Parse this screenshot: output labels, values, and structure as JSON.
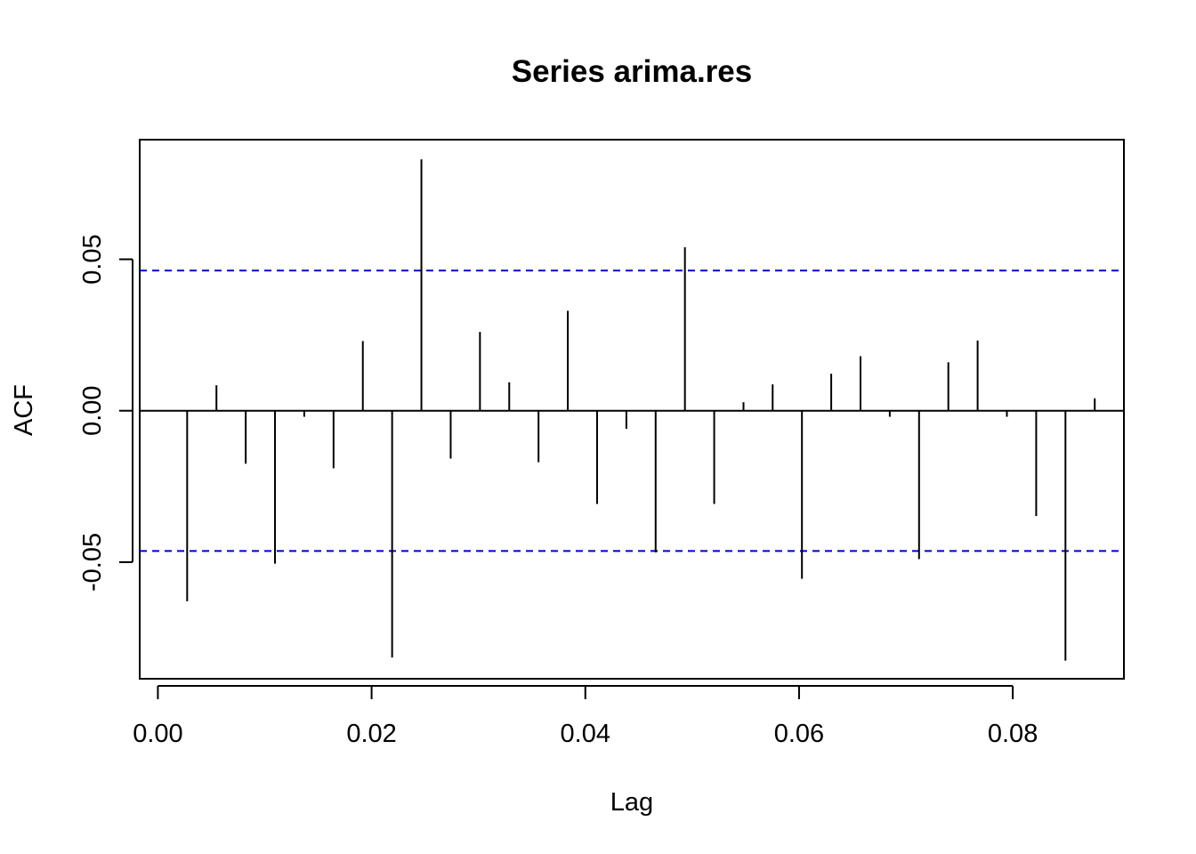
{
  "chart_data": {
    "type": "bar",
    "subtype": "acf-stem",
    "title": "Series arima.res",
    "xlabel": "Lag",
    "ylabel": "ACF",
    "xlim": [
      -0.0017,
      0.0904
    ],
    "ylim": [
      -0.0885,
      0.0895
    ],
    "x_ticks": [
      0.0,
      0.02,
      0.04,
      0.06,
      0.08
    ],
    "x_tick_labels": [
      "0.00",
      "0.02",
      "0.04",
      "0.06",
      "0.08"
    ],
    "y_ticks": [
      -0.05,
      0.0,
      0.05
    ],
    "y_tick_labels": [
      "-0.05",
      "0.00",
      "0.05"
    ],
    "confidence_band": 0.0463,
    "x": [
      0.00274,
      0.00548,
      0.00822,
      0.01096,
      0.0137,
      0.01644,
      0.01918,
      0.02192,
      0.02466,
      0.0274,
      0.03014,
      0.03288,
      0.03562,
      0.03836,
      0.0411,
      0.04384,
      0.04658,
      0.04932,
      0.05206,
      0.0548,
      0.05753,
      0.06027,
      0.06301,
      0.06575,
      0.06849,
      0.07123,
      0.07397,
      0.07671,
      0.07945,
      0.08219,
      0.08493,
      0.08767
    ],
    "values": [
      -0.0629,
      0.0084,
      -0.0175,
      -0.0505,
      -0.002,
      -0.019,
      0.023,
      -0.0815,
      0.083,
      -0.0158,
      0.026,
      0.0094,
      -0.017,
      0.033,
      -0.0308,
      -0.006,
      -0.0468,
      0.054,
      -0.0308,
      0.0028,
      0.0087,
      -0.0555,
      0.0122,
      0.018,
      -0.002,
      -0.049,
      0.016,
      0.0232,
      -0.002,
      -0.0348,
      -0.0825,
      0.0041
    ],
    "grid": false,
    "colors": {
      "stems": "#000000",
      "confidence_band": "#0000cc",
      "frame": "#000000"
    }
  }
}
